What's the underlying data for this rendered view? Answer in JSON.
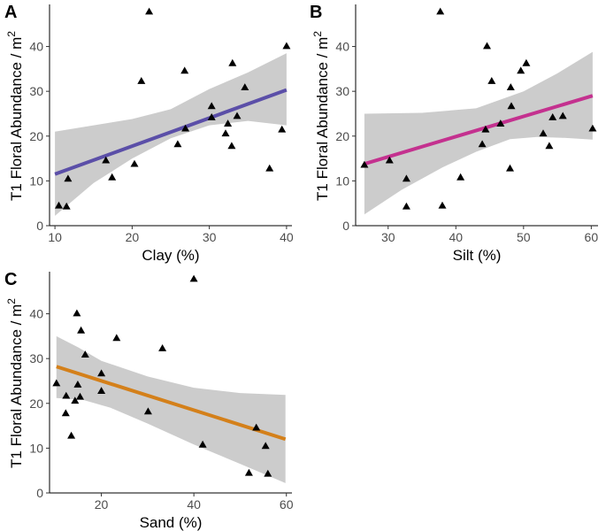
{
  "figure": {
    "width": 685,
    "height": 600
  },
  "chart_data": [
    {
      "panel": "A",
      "type": "scatter",
      "xlabel": "Clay (%)",
      "ylabel": "T1 Floral Abundance / m",
      "ylabel_sup": "2",
      "xlim": [
        9.3,
        40.7
      ],
      "ylim": [
        0,
        49
      ],
      "xticks": [
        10,
        20,
        30,
        40
      ],
      "yticks": [
        0,
        10,
        20,
        30,
        40
      ],
      "line_color": "#5b4fa8",
      "points": [
        {
          "x": 10.5,
          "y": 4.5
        },
        {
          "x": 11.5,
          "y": 4.3
        },
        {
          "x": 11.7,
          "y": 10.5
        },
        {
          "x": 16.6,
          "y": 14.6
        },
        {
          "x": 17.4,
          "y": 10.8
        },
        {
          "x": 20.3,
          "y": 13.8
        },
        {
          "x": 21.2,
          "y": 32.3
        },
        {
          "x": 22.2,
          "y": 47.8
        },
        {
          "x": 25.9,
          "y": 18.2
        },
        {
          "x": 26.8,
          "y": 34.6
        },
        {
          "x": 26.9,
          "y": 21.7
        },
        {
          "x": 30.3,
          "y": 26.7
        },
        {
          "x": 30.3,
          "y": 24.2
        },
        {
          "x": 32.1,
          "y": 20.6
        },
        {
          "x": 32.4,
          "y": 22.8
        },
        {
          "x": 32.9,
          "y": 17.8
        },
        {
          "x": 33.0,
          "y": 36.3
        },
        {
          "x": 33.6,
          "y": 24.5
        },
        {
          "x": 34.6,
          "y": 30.9
        },
        {
          "x": 37.8,
          "y": 12.8
        },
        {
          "x": 39.4,
          "y": 21.5
        },
        {
          "x": 40.0,
          "y": 40.1
        }
      ],
      "fit": {
        "x1": 10,
        "y1": 11.5,
        "x2": 40,
        "y2": 30.3
      },
      "ci_upper": [
        [
          10,
          21.0
        ],
        [
          20,
          23.8
        ],
        [
          25,
          26.0
        ],
        [
          30,
          30.5
        ],
        [
          35,
          34.2
        ],
        [
          40,
          38.5
        ]
      ],
      "ci_lower": [
        [
          10,
          2.2
        ],
        [
          15,
          9.5
        ],
        [
          20,
          15.0
        ],
        [
          25,
          19.5
        ],
        [
          30,
          22.4
        ],
        [
          35,
          23.4
        ],
        [
          40,
          22.4
        ]
      ]
    },
    {
      "panel": "B",
      "type": "scatter",
      "xlabel": "Silt (%)",
      "ylabel": "T1 Floral Abundance / m",
      "ylabel_sup": "2",
      "xlim": [
        25.2,
        61.0
      ],
      "ylim": [
        0,
        49
      ],
      "xticks": [
        30,
        40,
        50,
        60
      ],
      "yticks": [
        0,
        10,
        20,
        30,
        40
      ],
      "line_color": "#c4318f",
      "points": [
        {
          "x": 26.5,
          "y": 13.6
        },
        {
          "x": 30.2,
          "y": 14.6
        },
        {
          "x": 32.7,
          "y": 10.5
        },
        {
          "x": 32.7,
          "y": 4.3
        },
        {
          "x": 37.7,
          "y": 47.8
        },
        {
          "x": 38.0,
          "y": 4.5
        },
        {
          "x": 40.7,
          "y": 10.8
        },
        {
          "x": 43.9,
          "y": 18.2
        },
        {
          "x": 44.4,
          "y": 21.5
        },
        {
          "x": 44.6,
          "y": 40.1
        },
        {
          "x": 45.3,
          "y": 32.3
        },
        {
          "x": 46.6,
          "y": 22.8
        },
        {
          "x": 48.0,
          "y": 12.8
        },
        {
          "x": 48.1,
          "y": 30.9
        },
        {
          "x": 48.2,
          "y": 26.7
        },
        {
          "x": 49.6,
          "y": 34.6
        },
        {
          "x": 50.4,
          "y": 36.3
        },
        {
          "x": 52.9,
          "y": 20.6
        },
        {
          "x": 53.8,
          "y": 17.8
        },
        {
          "x": 54.3,
          "y": 24.2
        },
        {
          "x": 55.8,
          "y": 24.5
        },
        {
          "x": 60.2,
          "y": 21.7
        }
      ],
      "fit": {
        "x1": 26.5,
        "y1": 13.8,
        "x2": 60.2,
        "y2": 29.0
      },
      "ci_upper": [
        [
          26.5,
          25.0
        ],
        [
          35,
          25.2
        ],
        [
          43,
          26.2
        ],
        [
          50,
          30.0
        ],
        [
          55,
          34.0
        ],
        [
          60.2,
          38.8
        ]
      ],
      "ci_lower": [
        [
          26.5,
          2.5
        ],
        [
          32,
          8.0
        ],
        [
          38,
          13.0
        ],
        [
          43,
          16.5
        ],
        [
          48,
          19.3
        ],
        [
          52,
          19.8
        ],
        [
          56,
          19.6
        ],
        [
          60.2,
          19.2
        ]
      ]
    },
    {
      "panel": "C",
      "type": "scatter",
      "xlabel": "Sand (%)",
      "ylabel": "T1 Floral Abundance / m",
      "ylabel_sup": "2",
      "xlim": [
        8.8,
        61.2
      ],
      "ylim": [
        0,
        49
      ],
      "xticks": [
        20,
        40,
        60
      ],
      "yticks": [
        0,
        10,
        20,
        30,
        40
      ],
      "line_color": "#d4801a",
      "points": [
        {
          "x": 10.3,
          "y": 24.5
        },
        {
          "x": 12.3,
          "y": 17.8
        },
        {
          "x": 12.4,
          "y": 21.7
        },
        {
          "x": 13.5,
          "y": 12.8
        },
        {
          "x": 14.3,
          "y": 20.6
        },
        {
          "x": 14.7,
          "y": 40.1
        },
        {
          "x": 14.9,
          "y": 24.2
        },
        {
          "x": 15.4,
          "y": 21.5
        },
        {
          "x": 15.6,
          "y": 36.3
        },
        {
          "x": 16.5,
          "y": 30.9
        },
        {
          "x": 20.0,
          "y": 26.7
        },
        {
          "x": 20.0,
          "y": 22.8
        },
        {
          "x": 23.3,
          "y": 34.6
        },
        {
          "x": 30.1,
          "y": 18.2
        },
        {
          "x": 33.2,
          "y": 32.3
        },
        {
          "x": 40.0,
          "y": 47.8
        },
        {
          "x": 41.9,
          "y": 10.8
        },
        {
          "x": 51.9,
          "y": 4.5
        },
        {
          "x": 53.5,
          "y": 14.6
        },
        {
          "x": 55.5,
          "y": 10.5
        },
        {
          "x": 56.0,
          "y": 4.3
        }
      ],
      "fit": {
        "x1": 10.3,
        "y1": 28.2,
        "x2": 59.8,
        "y2": 12.0
      },
      "ci_upper": [
        [
          10.3,
          35.0
        ],
        [
          15,
          32.5
        ],
        [
          20,
          29.5
        ],
        [
          30,
          26.0
        ],
        [
          40,
          23.5
        ],
        [
          50,
          22.3
        ],
        [
          59.8,
          21.9
        ]
      ],
      "ci_lower": [
        [
          10.3,
          21.2
        ],
        [
          16,
          20.8
        ],
        [
          22,
          19.0
        ],
        [
          30,
          15.5
        ],
        [
          40,
          10.8
        ],
        [
          50,
          6.5
        ],
        [
          59.8,
          2.2
        ]
      ]
    }
  ]
}
